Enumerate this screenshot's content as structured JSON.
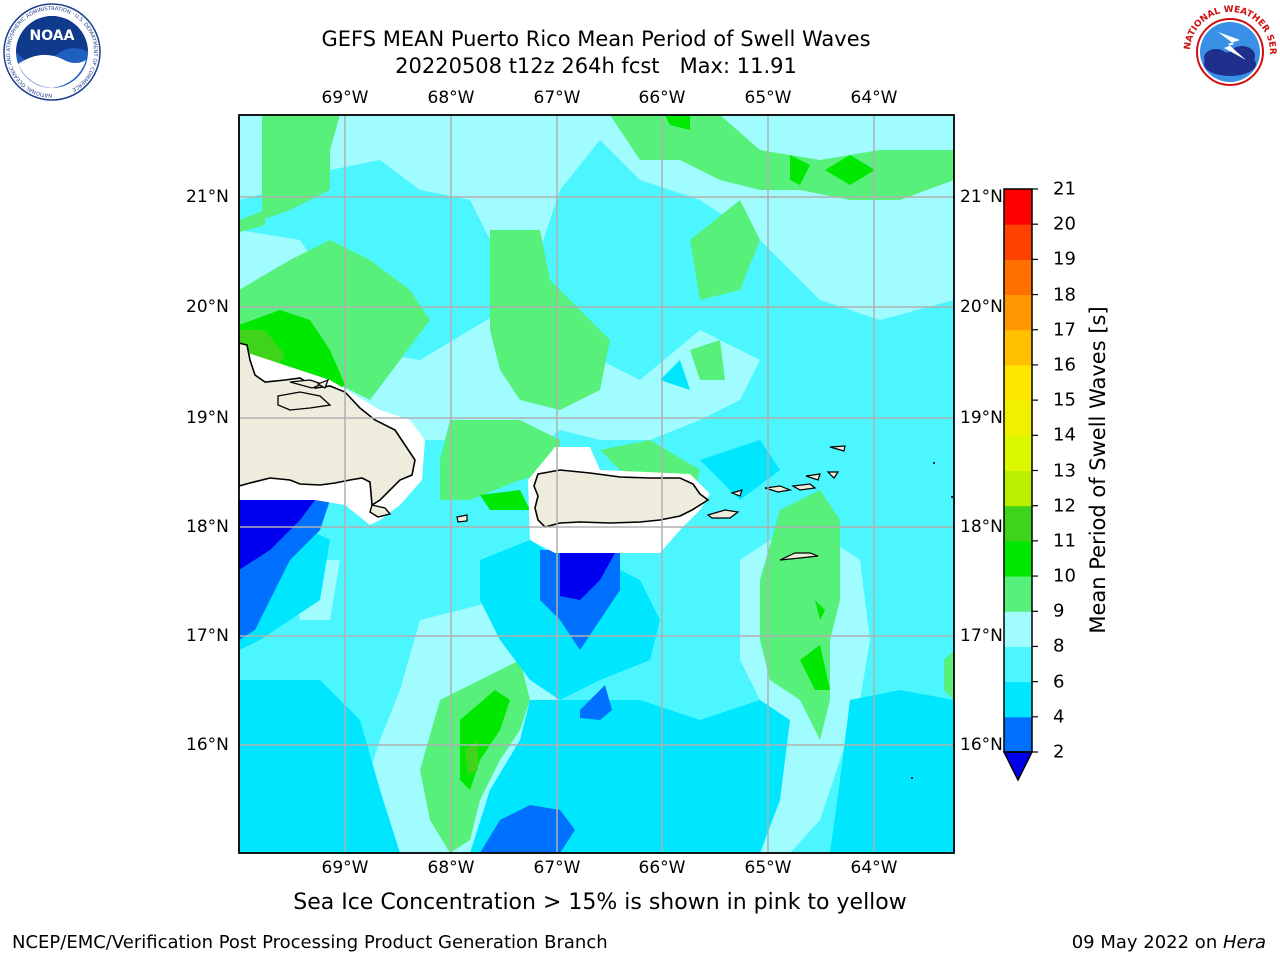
{
  "header": {
    "title_line1": "GEFS MEAN Puerto Rico Mean Period of Swell Waves",
    "title_line2": "20220508 t12z 264h fcst   Max: 11.91"
  },
  "logos": {
    "left": {
      "icon": "noaa-logo",
      "text": "NOAA",
      "ring_text": "NATIONAL OCEANIC AND ATMOSPHERIC ADMINISTRATION · U.S. DEPARTMENT OF COMMERCE"
    },
    "right": {
      "icon": "nws-logo",
      "ring_text": "NATIONAL WEATHER SERVICE"
    }
  },
  "map": {
    "lon_labels": [
      "69°W",
      "68°W",
      "67°W",
      "66°W",
      "65°W",
      "64°W"
    ],
    "lat_labels": [
      "21°N",
      "20°N",
      "19°N",
      "18°N",
      "17°N",
      "16°N"
    ],
    "land_color": "#eeecdc",
    "grid_color": "#b0b0b0"
  },
  "colorbar": {
    "label": "Mean Period of Swell Waves [s]",
    "ticks": [
      "2",
      "4",
      "6",
      "8",
      "9",
      "10",
      "11",
      "12",
      "13",
      "14",
      "15",
      "16",
      "17",
      "18",
      "19",
      "20",
      "21"
    ],
    "colors": {
      "lt2": "#0000ee",
      "2-4": "#0070ff",
      "4-6": "#00e6ff",
      "6-8": "#4cf6ff",
      "8-9": "#a0fcff",
      "9-10": "#57f07a",
      "10-11": "#00e800",
      "11-12": "#3fd41a",
      "12-13": "#b8f000",
      "13-14": "#dcf800",
      "14-15": "#f0f000",
      "15-16": "#ffe600",
      "16-17": "#ffc000",
      "17-18": "#ff9800",
      "18-19": "#ff7000",
      "19-20": "#ff4000",
      "20-21": "#ff0000"
    }
  },
  "note": "Sea Ice Concentration > 15% is shown in pink to yellow",
  "footer": {
    "credit": "NCEP/EMC/Verification Post Processing Product Generation Branch",
    "date": "09 May 2022 on ",
    "host": "Hera"
  }
}
